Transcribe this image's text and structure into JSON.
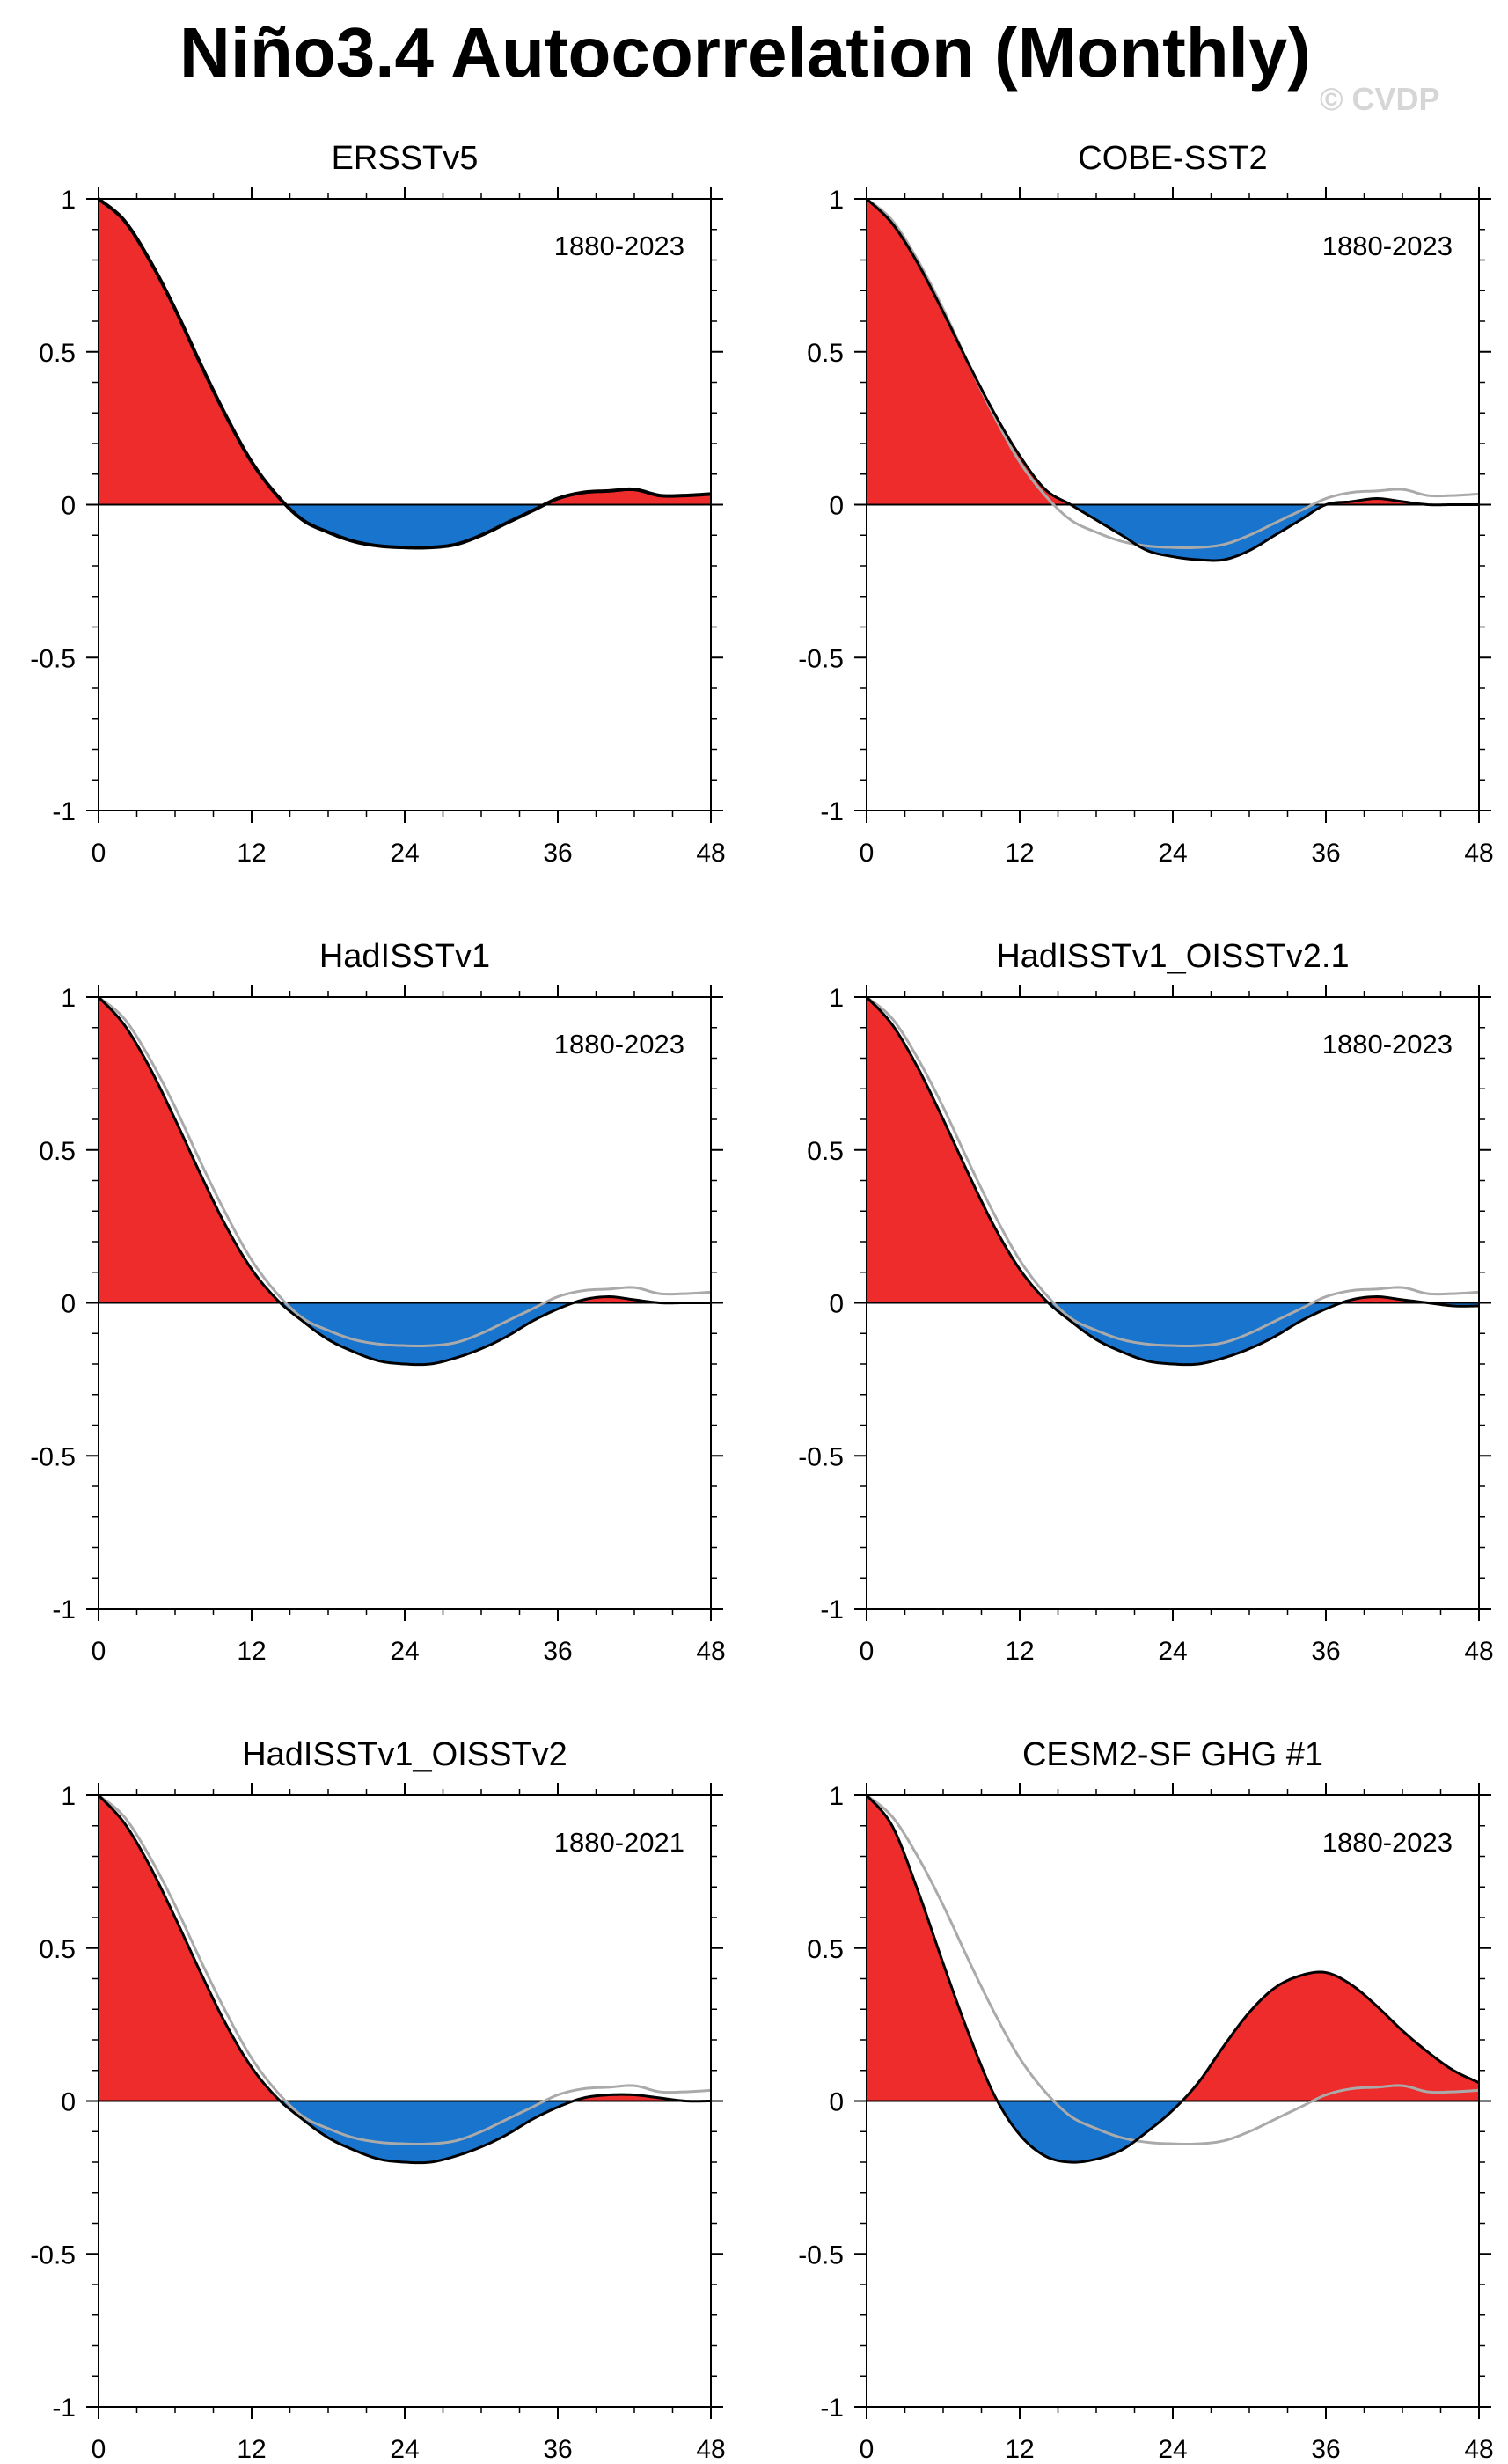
{
  "title": "Niño3.4 Autocorrelation (Monthly)",
  "watermark": "© CVDP",
  "style": {
    "positive_fill": "#ee2c2c",
    "negative_fill": "#1874cd",
    "line_color": "#000000",
    "reference_line_color": "#aaaaaa",
    "frame_color": "#000000"
  },
  "axes": {
    "x_range": [
      0,
      48
    ],
    "y_range": [
      -1,
      1
    ],
    "x_ticks": [
      0,
      12,
      24,
      36,
      48
    ],
    "x_tick_labels": [
      "0",
      "12",
      "24",
      "36",
      "48"
    ],
    "y_ticks": [
      1,
      0.5,
      0,
      -0.5,
      -1
    ],
    "y_tick_labels": [
      "1",
      "0.5",
      "0",
      "-0.5",
      "-1"
    ]
  },
  "chart_data": [
    {
      "type": "area",
      "title": "ERSSTv5",
      "period": "1880-2023",
      "reference_series": false,
      "x": [
        0,
        2,
        4,
        6,
        8,
        10,
        12,
        14,
        16,
        18,
        20,
        22,
        24,
        26,
        28,
        30,
        32,
        34,
        36,
        38,
        40,
        42,
        44,
        46,
        48
      ],
      "values": [
        1.0,
        0.93,
        0.8,
        0.64,
        0.46,
        0.29,
        0.14,
        0.03,
        -0.05,
        -0.09,
        -0.12,
        -0.135,
        -0.14,
        -0.14,
        -0.13,
        -0.1,
        -0.06,
        -0.02,
        0.02,
        0.04,
        0.045,
        0.05,
        0.03,
        0.03,
        0.035
      ]
    },
    {
      "type": "area",
      "title": "COBE-SST2",
      "period": "1880-2023",
      "reference_series": true,
      "x": [
        0,
        2,
        4,
        6,
        8,
        10,
        12,
        14,
        16,
        18,
        20,
        22,
        24,
        26,
        28,
        30,
        32,
        34,
        36,
        38,
        40,
        42,
        44,
        46,
        48
      ],
      "values": [
        1.0,
        0.92,
        0.79,
        0.63,
        0.46,
        0.3,
        0.16,
        0.05,
        0.0,
        -0.05,
        -0.1,
        -0.15,
        -0.17,
        -0.18,
        -0.18,
        -0.15,
        -0.1,
        -0.05,
        0.0,
        0.01,
        0.02,
        0.01,
        0.0,
        0.0,
        0.0
      ]
    },
    {
      "type": "area",
      "title": "HadISSTv1",
      "period": "1880-2023",
      "reference_series": true,
      "x": [
        0,
        2,
        4,
        6,
        8,
        10,
        12,
        14,
        16,
        18,
        20,
        22,
        24,
        26,
        28,
        30,
        32,
        34,
        36,
        38,
        40,
        42,
        44,
        46,
        48
      ],
      "values": [
        1.0,
        0.91,
        0.77,
        0.6,
        0.42,
        0.25,
        0.11,
        0.01,
        -0.06,
        -0.12,
        -0.16,
        -0.19,
        -0.2,
        -0.2,
        -0.18,
        -0.15,
        -0.11,
        -0.06,
        -0.02,
        0.01,
        0.02,
        0.01,
        0.0,
        0.0,
        0.0
      ]
    },
    {
      "type": "area",
      "title": "HadISSTv1_OISSTv2.1",
      "period": "1880-2023",
      "reference_series": true,
      "x": [
        0,
        2,
        4,
        6,
        8,
        10,
        12,
        14,
        16,
        18,
        20,
        22,
        24,
        26,
        28,
        30,
        32,
        34,
        36,
        38,
        40,
        42,
        44,
        46,
        48
      ],
      "values": [
        1.0,
        0.91,
        0.77,
        0.6,
        0.42,
        0.25,
        0.11,
        0.01,
        -0.06,
        -0.12,
        -0.16,
        -0.19,
        -0.2,
        -0.2,
        -0.18,
        -0.15,
        -0.11,
        -0.06,
        -0.02,
        0.01,
        0.02,
        0.01,
        0.0,
        -0.01,
        -0.01
      ]
    },
    {
      "type": "area",
      "title": "HadISSTv1_OISSTv2",
      "period": "1880-2021",
      "reference_series": true,
      "x": [
        0,
        2,
        4,
        6,
        8,
        10,
        12,
        14,
        16,
        18,
        20,
        22,
        24,
        26,
        28,
        30,
        32,
        34,
        36,
        38,
        40,
        42,
        44,
        46,
        48
      ],
      "values": [
        1.0,
        0.91,
        0.77,
        0.6,
        0.42,
        0.25,
        0.11,
        0.01,
        -0.06,
        -0.12,
        -0.16,
        -0.19,
        -0.2,
        -0.2,
        -0.18,
        -0.15,
        -0.11,
        -0.06,
        -0.02,
        0.01,
        0.02,
        0.02,
        0.01,
        0.0,
        0.0
      ]
    },
    {
      "type": "area",
      "title": "CESM2-SF GHG #1",
      "period": "1880-2023",
      "reference_series": true,
      "x": [
        0,
        2,
        4,
        6,
        8,
        10,
        12,
        14,
        16,
        18,
        20,
        22,
        24,
        26,
        28,
        30,
        32,
        34,
        36,
        38,
        40,
        42,
        44,
        46,
        48
      ],
      "values": [
        1.0,
        0.9,
        0.69,
        0.45,
        0.22,
        0.02,
        -0.11,
        -0.18,
        -0.2,
        -0.19,
        -0.16,
        -0.1,
        -0.03,
        0.06,
        0.18,
        0.29,
        0.37,
        0.41,
        0.42,
        0.38,
        0.31,
        0.23,
        0.16,
        0.1,
        0.06
      ]
    }
  ],
  "observed_reference": {
    "x": [
      0,
      2,
      4,
      6,
      8,
      10,
      12,
      14,
      16,
      18,
      20,
      22,
      24,
      26,
      28,
      30,
      32,
      34,
      36,
      38,
      40,
      42,
      44,
      46,
      48
    ],
    "values": [
      1.0,
      0.93,
      0.8,
      0.64,
      0.46,
      0.29,
      0.14,
      0.03,
      -0.05,
      -0.09,
      -0.12,
      -0.135,
      -0.14,
      -0.14,
      -0.13,
      -0.1,
      -0.06,
      -0.02,
      0.02,
      0.04,
      0.045,
      0.05,
      0.03,
      0.03,
      0.035
    ]
  }
}
